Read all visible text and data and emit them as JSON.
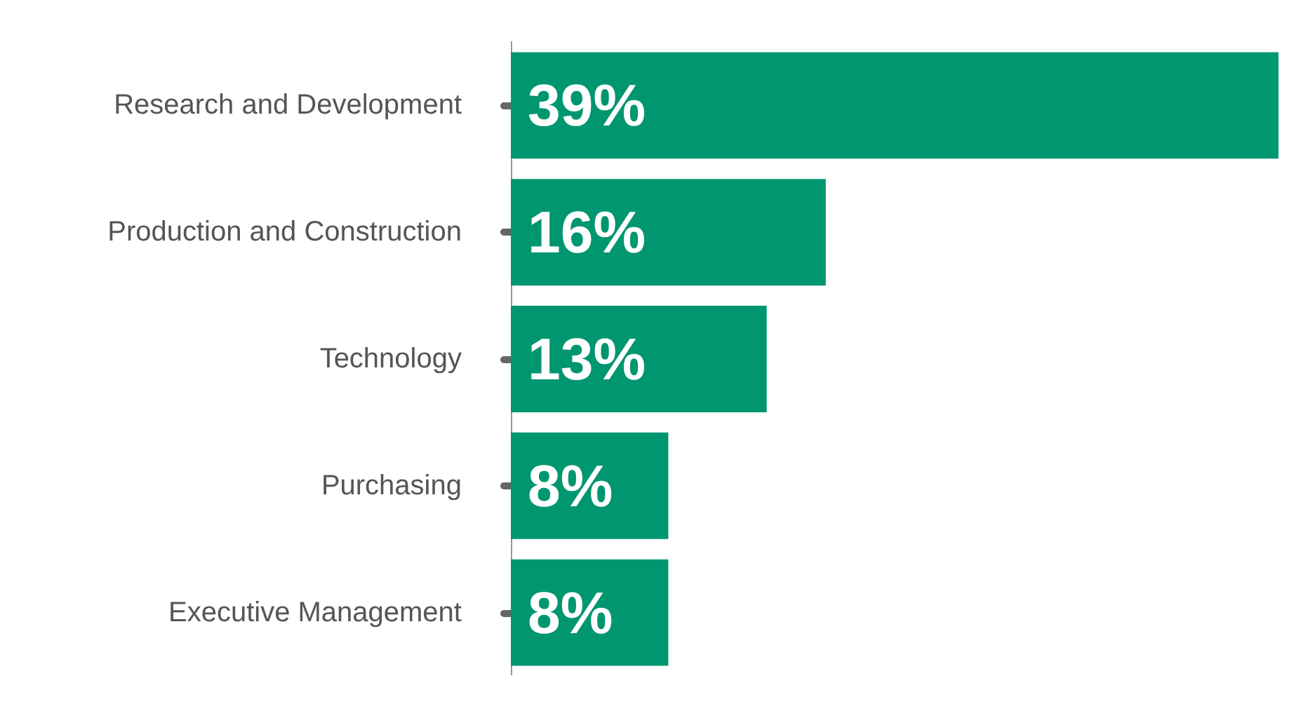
{
  "chart_data": {
    "type": "bar",
    "orientation": "horizontal",
    "categories": [
      "Research and Development",
      "Production and Construction",
      "Technology",
      "Purchasing",
      "Executive Management"
    ],
    "values": [
      39,
      16,
      13,
      8,
      8
    ],
    "color": "#009670",
    "value_labels": [
      "39%",
      "16%",
      "13%",
      "8%",
      "8%"
    ]
  }
}
